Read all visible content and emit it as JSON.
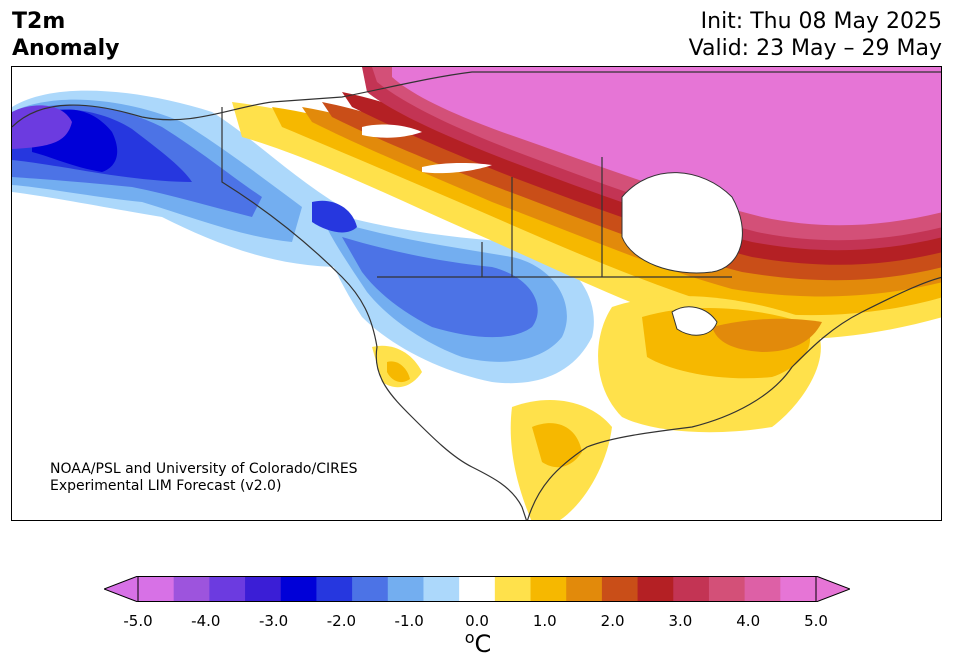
{
  "header": {
    "title_line1": "T2m",
    "title_line2": "Anomaly",
    "init": "Init: Thu 08 May 2025",
    "valid": "Valid: 23 May – 29 May"
  },
  "credit": {
    "line1": "NOAA/PSL and University of Colorado/CIRES",
    "line2": "Experimental LIM Forecast (v2.0)"
  },
  "colorbar": {
    "levels": [
      -5.0,
      -4.5,
      -4.0,
      -3.5,
      -3.0,
      -2.5,
      -2.0,
      -1.5,
      -1.0,
      -0.5,
      0.5,
      1.0,
      1.5,
      2.0,
      2.5,
      3.0,
      3.5,
      4.0,
      4.5,
      5.0
    ],
    "colors": [
      "#d771e6",
      "#9d54dd",
      "#6c3be0",
      "#3b1ed6",
      "#0000d8",
      "#2637df",
      "#4c73e6",
      "#73aef0",
      "#acd8fb",
      "#ffffff",
      "#ffe14b",
      "#f6b800",
      "#e28a0b",
      "#c94e18",
      "#b42024",
      "#c33454",
      "#d35078",
      "#dd60a6",
      "#e675d6"
    ],
    "over_color": "#e675d6",
    "under_color": "#d771e6",
    "tick_labels": [
      "-5.0",
      "-4.0",
      "-3.0",
      "-2.0",
      "-1.0",
      "0.0",
      "1.0",
      "2.0",
      "3.0",
      "4.0",
      "5.0"
    ],
    "tick_values": [
      -5,
      -4,
      -3,
      -2,
      -1,
      0,
      1,
      2,
      3,
      4,
      5
    ],
    "unit_label": "oC"
  }
}
